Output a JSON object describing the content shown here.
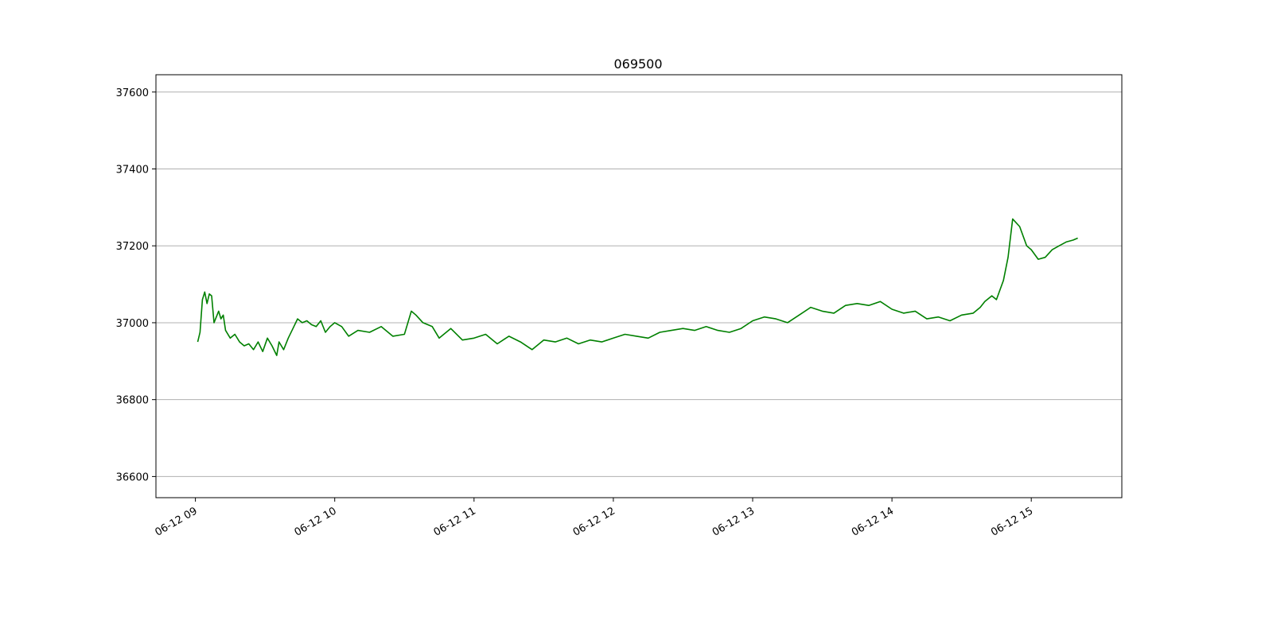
{
  "chart_data": {
    "type": "line",
    "title": "069500",
    "xlabel": "",
    "ylabel": "",
    "x_ticks": [
      "06-12 09",
      "06-12 10",
      "06-12 11",
      "06-12 12",
      "06-12 13",
      "06-12 14",
      "06-12 15"
    ],
    "y_ticks": [
      36600,
      36800,
      37000,
      37200,
      37400,
      37600
    ],
    "xlim": [
      "2023-06-12 08:43",
      "2023-06-12 15:39"
    ],
    "ylim": [
      36545,
      37645
    ],
    "grid": "horizontal",
    "line_color": "#008000",
    "series": [
      {
        "x": [
          "2023-06-12 09:01",
          "2023-06-12 09:02",
          "2023-06-12 09:03",
          "2023-06-12 09:04",
          "2023-06-12 09:05",
          "2023-06-12 09:06",
          "2023-06-12 09:07",
          "2023-06-12 09:08",
          "2023-06-12 09:10",
          "2023-06-12 09:11",
          "2023-06-12 09:12",
          "2023-06-12 09:13",
          "2023-06-12 09:15",
          "2023-06-12 09:17",
          "2023-06-12 09:19",
          "2023-06-12 09:21",
          "2023-06-12 09:23",
          "2023-06-12 09:25",
          "2023-06-12 09:27",
          "2023-06-12 09:29",
          "2023-06-12 09:31",
          "2023-06-12 09:33",
          "2023-06-12 09:35",
          "2023-06-12 09:36",
          "2023-06-12 09:38",
          "2023-06-12 09:40",
          "2023-06-12 09:42",
          "2023-06-12 09:44",
          "2023-06-12 09:46",
          "2023-06-12 09:48",
          "2023-06-12 09:50",
          "2023-06-12 09:52",
          "2023-06-12 09:54",
          "2023-06-12 09:56",
          "2023-06-12 09:58",
          "2023-06-12 10:00",
          "2023-06-12 10:03",
          "2023-06-12 10:06",
          "2023-06-12 10:10",
          "2023-06-12 10:15",
          "2023-06-12 10:20",
          "2023-06-12 10:25",
          "2023-06-12 10:30",
          "2023-06-12 10:33",
          "2023-06-12 10:35",
          "2023-06-12 10:38",
          "2023-06-12 10:42",
          "2023-06-12 10:45",
          "2023-06-12 10:50",
          "2023-06-12 10:55",
          "2023-06-12 11:00",
          "2023-06-12 11:05",
          "2023-06-12 11:10",
          "2023-06-12 11:15",
          "2023-06-12 11:20",
          "2023-06-12 11:25",
          "2023-06-12 11:30",
          "2023-06-12 11:35",
          "2023-06-12 11:40",
          "2023-06-12 11:45",
          "2023-06-12 11:50",
          "2023-06-12 11:55",
          "2023-06-12 12:00",
          "2023-06-12 12:05",
          "2023-06-12 12:10",
          "2023-06-12 12:15",
          "2023-06-12 12:20",
          "2023-06-12 12:25",
          "2023-06-12 12:30",
          "2023-06-12 12:35",
          "2023-06-12 12:40",
          "2023-06-12 12:45",
          "2023-06-12 12:50",
          "2023-06-12 12:55",
          "2023-06-12 13:00",
          "2023-06-12 13:05",
          "2023-06-12 13:10",
          "2023-06-12 13:15",
          "2023-06-12 13:20",
          "2023-06-12 13:25",
          "2023-06-12 13:30",
          "2023-06-12 13:35",
          "2023-06-12 13:40",
          "2023-06-12 13:45",
          "2023-06-12 13:50",
          "2023-06-12 13:55",
          "2023-06-12 14:00",
          "2023-06-12 14:05",
          "2023-06-12 14:10",
          "2023-06-12 14:15",
          "2023-06-12 14:20",
          "2023-06-12 14:25",
          "2023-06-12 14:30",
          "2023-06-12 14:35",
          "2023-06-12 14:38",
          "2023-06-12 14:40",
          "2023-06-12 14:43",
          "2023-06-12 14:45",
          "2023-06-12 14:48",
          "2023-06-12 14:50",
          "2023-06-12 14:52",
          "2023-06-12 14:55",
          "2023-06-12 14:58",
          "2023-06-12 15:00",
          "2023-06-12 15:03",
          "2023-06-12 15:06",
          "2023-06-12 15:09",
          "2023-06-12 15:12",
          "2023-06-12 15:15",
          "2023-06-12 15:18",
          "2023-06-12 15:20"
        ],
        "y": [
          36950,
          36975,
          37060,
          37080,
          37050,
          37075,
          37070,
          37000,
          37030,
          37010,
          37020,
          36980,
          36960,
          36970,
          36950,
          36940,
          36945,
          36930,
          36950,
          36925,
          36960,
          36940,
          36915,
          36950,
          36930,
          36960,
          36985,
          37010,
          37000,
          37005,
          36995,
          36990,
          37005,
          36975,
          36990,
          37000,
          36990,
          36965,
          36980,
          36975,
          36990,
          36965,
          36970,
          37030,
          37020,
          37000,
          36990,
          36960,
          36985,
          36955,
          36960,
          36970,
          36945,
          36965,
          36950,
          36930,
          36955,
          36950,
          36960,
          36945,
          36955,
          36950,
          36960,
          36970,
          36965,
          36960,
          36975,
          36980,
          36985,
          36980,
          36990,
          36980,
          36975,
          36985,
          37005,
          37015,
          37010,
          37000,
          37020,
          37040,
          37030,
          37025,
          37045,
          37050,
          37045,
          37055,
          37035,
          37025,
          37030,
          37010,
          37015,
          37005,
          37020,
          37025,
          37040,
          37055,
          37070,
          37060,
          37110,
          37170,
          37270,
          37250,
          37200,
          37190,
          37165,
          37170,
          37190,
          37200,
          37210,
          37215,
          37220
        ]
      }
    ]
  }
}
